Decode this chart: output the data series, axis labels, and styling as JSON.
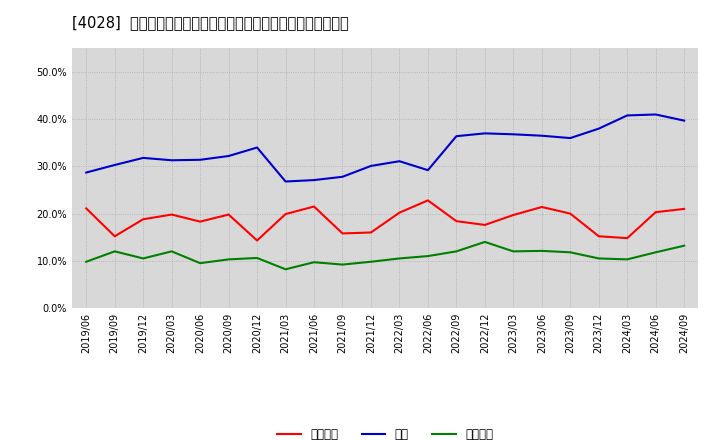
{
  "title": "[4028]  売上債権、在庫、買入債務の総資産に対する比率の推移",
  "dates": [
    "2019/06",
    "2019/09",
    "2019/12",
    "2020/03",
    "2020/06",
    "2020/09",
    "2020/12",
    "2021/03",
    "2021/06",
    "2021/09",
    "2021/12",
    "2022/03",
    "2022/06",
    "2022/09",
    "2022/12",
    "2023/03",
    "2023/06",
    "2023/09",
    "2023/12",
    "2024/03",
    "2024/06",
    "2024/09"
  ],
  "uriage_saiken": [
    0.211,
    0.152,
    0.188,
    0.198,
    0.183,
    0.198,
    0.143,
    0.199,
    0.215,
    0.158,
    0.16,
    0.202,
    0.228,
    0.184,
    0.176,
    0.197,
    0.214,
    0.2,
    0.152,
    0.148,
    0.203,
    0.21
  ],
  "zaiko": [
    0.287,
    0.303,
    0.318,
    0.313,
    0.314,
    0.322,
    0.34,
    0.268,
    0.271,
    0.278,
    0.301,
    0.311,
    0.292,
    0.364,
    0.37,
    0.368,
    0.365,
    0.36,
    0.38,
    0.408,
    0.41,
    0.397
  ],
  "kaiire_saimu": [
    0.098,
    0.12,
    0.105,
    0.12,
    0.095,
    0.103,
    0.106,
    0.082,
    0.097,
    0.092,
    0.098,
    0.105,
    0.11,
    0.12,
    0.14,
    0.12,
    0.121,
    0.118,
    0.105,
    0.103,
    0.118,
    0.132
  ],
  "color_uriage": "#ff0000",
  "color_zaiko": "#0000cc",
  "color_kaiire": "#008000",
  "label_uriage": "売上債権",
  "label_zaiko": "在庫",
  "label_kaiire": "買入債務",
  "ylim": [
    0.0,
    0.55
  ],
  "yticks": [
    0.0,
    0.1,
    0.2,
    0.3,
    0.4,
    0.5
  ],
  "background_color": "#ffffff",
  "plot_bg_color": "#d8d8d8",
  "title_fontsize": 10.5,
  "tick_fontsize": 7,
  "legend_fontsize": 8.5,
  "linewidth": 1.5
}
